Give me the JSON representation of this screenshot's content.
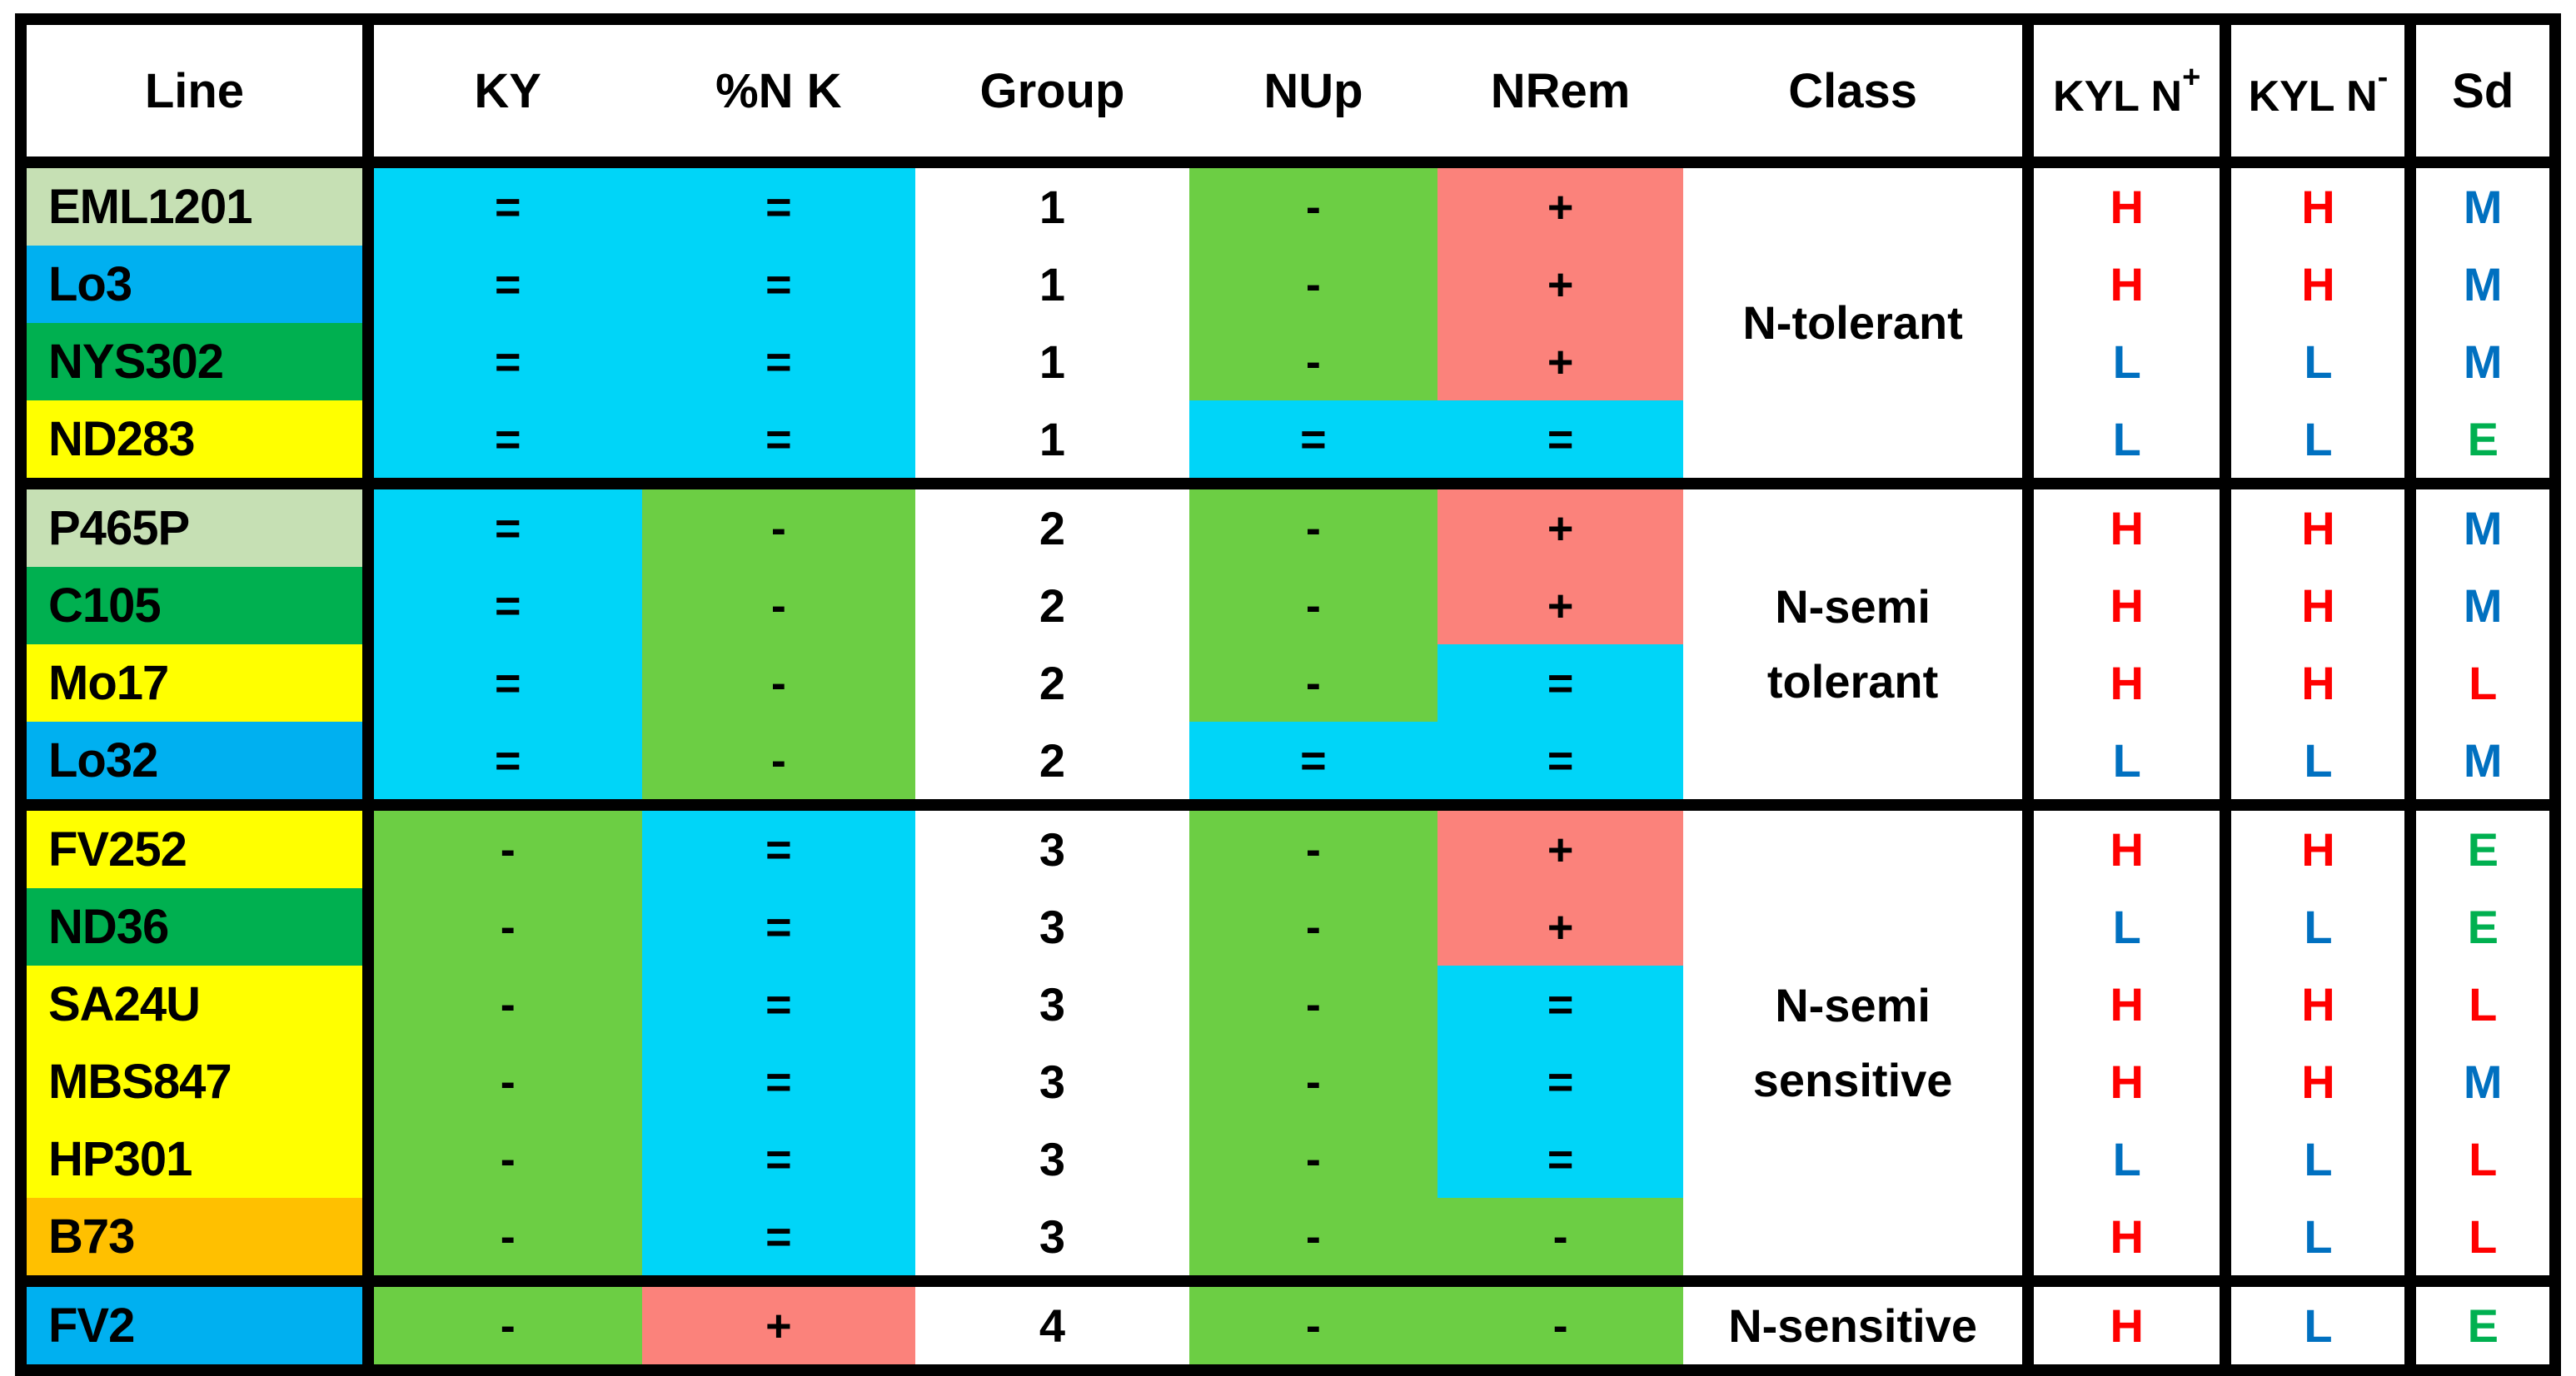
{
  "colors": {
    "lightgreen": "#c6e0b4",
    "blue": "#00b0f0",
    "darkgreen": "#00b050",
    "yellow": "#ffff00",
    "orange": "#ffc000",
    "cyan": "#00d5f8",
    "green": "#6cce44",
    "salmon": "#fb827b",
    "white": "#ffffff",
    "letter_red": "#ff0000",
    "letter_blue": "#0070c0",
    "letter_green": "#00b050"
  },
  "table": {
    "headers": [
      {
        "label": "Line"
      },
      {
        "label": "KY"
      },
      {
        "label": "%N K"
      },
      {
        "label": "Group"
      },
      {
        "label": "NUp"
      },
      {
        "label": "NRem"
      },
      {
        "label": "Class"
      },
      {
        "label": "KYL N",
        "sup": "+"
      },
      {
        "label": "KYL N",
        "sup": "-"
      },
      {
        "label": "Sd"
      }
    ]
  },
  "groups": [
    {
      "class_label": "N-tolerant",
      "rows": [
        {
          "line": "EML1201",
          "line_bg": "lightgreen",
          "ky": {
            "sym": "=",
            "bg": "cyan"
          },
          "pnk": {
            "sym": "=",
            "bg": "cyan"
          },
          "group": "1",
          "nup": {
            "sym": "-",
            "bg": "green"
          },
          "nrem": {
            "sym": "+",
            "bg": "salmon"
          },
          "kyln_plus": {
            "val": "H",
            "color": "letter_red"
          },
          "kyln_minus": {
            "val": "H",
            "color": "letter_red"
          },
          "sd": {
            "val": "M",
            "color": "letter_blue"
          }
        },
        {
          "line": "Lo3",
          "line_bg": "blue",
          "ky": {
            "sym": "=",
            "bg": "cyan"
          },
          "pnk": {
            "sym": "=",
            "bg": "cyan"
          },
          "group": "1",
          "nup": {
            "sym": "-",
            "bg": "green"
          },
          "nrem": {
            "sym": "+",
            "bg": "salmon"
          },
          "kyln_plus": {
            "val": "H",
            "color": "letter_red"
          },
          "kyln_minus": {
            "val": "H",
            "color": "letter_red"
          },
          "sd": {
            "val": "M",
            "color": "letter_blue"
          }
        },
        {
          "line": "NYS302",
          "line_bg": "darkgreen",
          "ky": {
            "sym": "=",
            "bg": "cyan"
          },
          "pnk": {
            "sym": "=",
            "bg": "cyan"
          },
          "group": "1",
          "nup": {
            "sym": "-",
            "bg": "green"
          },
          "nrem": {
            "sym": "+",
            "bg": "salmon"
          },
          "kyln_plus": {
            "val": "L",
            "color": "letter_blue"
          },
          "kyln_minus": {
            "val": "L",
            "color": "letter_blue"
          },
          "sd": {
            "val": "M",
            "color": "letter_blue"
          }
        },
        {
          "line": "ND283",
          "line_bg": "yellow",
          "ky": {
            "sym": "=",
            "bg": "cyan"
          },
          "pnk": {
            "sym": "=",
            "bg": "cyan"
          },
          "group": "1",
          "nup": {
            "sym": "=",
            "bg": "cyan"
          },
          "nrem": {
            "sym": "=",
            "bg": "cyan"
          },
          "kyln_plus": {
            "val": "L",
            "color": "letter_blue"
          },
          "kyln_minus": {
            "val": "L",
            "color": "letter_blue"
          },
          "sd": {
            "val": "E",
            "color": "letter_green"
          }
        }
      ]
    },
    {
      "class_label": "N-semi tolerant",
      "rows": [
        {
          "line": "P465P",
          "line_bg": "lightgreen",
          "ky": {
            "sym": "=",
            "bg": "cyan"
          },
          "pnk": {
            "sym": "-",
            "bg": "green"
          },
          "group": "2",
          "nup": {
            "sym": "-",
            "bg": "green"
          },
          "nrem": {
            "sym": "+",
            "bg": "salmon"
          },
          "kyln_plus": {
            "val": "H",
            "color": "letter_red"
          },
          "kyln_minus": {
            "val": "H",
            "color": "letter_red"
          },
          "sd": {
            "val": "M",
            "color": "letter_blue"
          }
        },
        {
          "line": "C105",
          "line_bg": "darkgreen",
          "ky": {
            "sym": "=",
            "bg": "cyan"
          },
          "pnk": {
            "sym": "-",
            "bg": "green"
          },
          "group": "2",
          "nup": {
            "sym": "-",
            "bg": "green"
          },
          "nrem": {
            "sym": "+",
            "bg": "salmon"
          },
          "kyln_plus": {
            "val": "H",
            "color": "letter_red"
          },
          "kyln_minus": {
            "val": "H",
            "color": "letter_red"
          },
          "sd": {
            "val": "M",
            "color": "letter_blue"
          }
        },
        {
          "line": "Mo17",
          "line_bg": "yellow",
          "ky": {
            "sym": "=",
            "bg": "cyan"
          },
          "pnk": {
            "sym": "-",
            "bg": "green"
          },
          "group": "2",
          "nup": {
            "sym": "-",
            "bg": "green"
          },
          "nrem": {
            "sym": "=",
            "bg": "cyan"
          },
          "kyln_plus": {
            "val": "H",
            "color": "letter_red"
          },
          "kyln_minus": {
            "val": "H",
            "color": "letter_red"
          },
          "sd": {
            "val": "L",
            "color": "letter_red"
          }
        },
        {
          "line": "Lo32",
          "line_bg": "blue",
          "ky": {
            "sym": "=",
            "bg": "cyan"
          },
          "pnk": {
            "sym": "-",
            "bg": "green"
          },
          "group": "2",
          "nup": {
            "sym": "=",
            "bg": "cyan"
          },
          "nrem": {
            "sym": "=",
            "bg": "cyan"
          },
          "kyln_plus": {
            "val": "L",
            "color": "letter_blue"
          },
          "kyln_minus": {
            "val": "L",
            "color": "letter_blue"
          },
          "sd": {
            "val": "M",
            "color": "letter_blue"
          }
        }
      ]
    },
    {
      "class_label": "N-semi sensitive",
      "rows": [
        {
          "line": "FV252",
          "line_bg": "yellow",
          "ky": {
            "sym": "-",
            "bg": "green"
          },
          "pnk": {
            "sym": "=",
            "bg": "cyan"
          },
          "group": "3",
          "nup": {
            "sym": "-",
            "bg": "green"
          },
          "nrem": {
            "sym": "+",
            "bg": "salmon"
          },
          "kyln_plus": {
            "val": "H",
            "color": "letter_red"
          },
          "kyln_minus": {
            "val": "H",
            "color": "letter_red"
          },
          "sd": {
            "val": "E",
            "color": "letter_green"
          }
        },
        {
          "line": "ND36",
          "line_bg": "darkgreen",
          "ky": {
            "sym": "-",
            "bg": "green"
          },
          "pnk": {
            "sym": "=",
            "bg": "cyan"
          },
          "group": "3",
          "nup": {
            "sym": "-",
            "bg": "green"
          },
          "nrem": {
            "sym": "+",
            "bg": "salmon"
          },
          "kyln_plus": {
            "val": "L",
            "color": "letter_blue"
          },
          "kyln_minus": {
            "val": "L",
            "color": "letter_blue"
          },
          "sd": {
            "val": "E",
            "color": "letter_green"
          }
        },
        {
          "line": "SA24U",
          "line_bg": "yellow",
          "ky": {
            "sym": "-",
            "bg": "green"
          },
          "pnk": {
            "sym": "=",
            "bg": "cyan"
          },
          "group": "3",
          "nup": {
            "sym": "-",
            "bg": "green"
          },
          "nrem": {
            "sym": "=",
            "bg": "cyan"
          },
          "kyln_plus": {
            "val": "H",
            "color": "letter_red"
          },
          "kyln_minus": {
            "val": "H",
            "color": "letter_red"
          },
          "sd": {
            "val": "L",
            "color": "letter_red"
          }
        },
        {
          "line": "MBS847",
          "line_bg": "yellow",
          "ky": {
            "sym": "-",
            "bg": "green"
          },
          "pnk": {
            "sym": "=",
            "bg": "cyan"
          },
          "group": "3",
          "nup": {
            "sym": "-",
            "bg": "green"
          },
          "nrem": {
            "sym": "=",
            "bg": "cyan"
          },
          "kyln_plus": {
            "val": "H",
            "color": "letter_red"
          },
          "kyln_minus": {
            "val": "H",
            "color": "letter_red"
          },
          "sd": {
            "val": "M",
            "color": "letter_blue"
          }
        },
        {
          "line": "HP301",
          "line_bg": "yellow",
          "ky": {
            "sym": "-",
            "bg": "green"
          },
          "pnk": {
            "sym": "=",
            "bg": "cyan"
          },
          "group": "3",
          "nup": {
            "sym": "-",
            "bg": "green"
          },
          "nrem": {
            "sym": "=",
            "bg": "cyan"
          },
          "kyln_plus": {
            "val": "L",
            "color": "letter_blue"
          },
          "kyln_minus": {
            "val": "L",
            "color": "letter_blue"
          },
          "sd": {
            "val": "L",
            "color": "letter_red"
          }
        },
        {
          "line": "B73",
          "line_bg": "orange",
          "ky": {
            "sym": "-",
            "bg": "green"
          },
          "pnk": {
            "sym": "=",
            "bg": "cyan"
          },
          "group": "3",
          "nup": {
            "sym": "-",
            "bg": "green"
          },
          "nrem": {
            "sym": "-",
            "bg": "green"
          },
          "kyln_plus": {
            "val": "H",
            "color": "letter_red"
          },
          "kyln_minus": {
            "val": "L",
            "color": "letter_blue"
          },
          "sd": {
            "val": "L",
            "color": "letter_red"
          }
        }
      ]
    },
    {
      "class_label": "N-sensitive",
      "rows": [
        {
          "line": "FV2",
          "line_bg": "blue",
          "ky": {
            "sym": "-",
            "bg": "green"
          },
          "pnk": {
            "sym": "+",
            "bg": "salmon"
          },
          "group": "4",
          "nup": {
            "sym": "-",
            "bg": "green"
          },
          "nrem": {
            "sym": "-",
            "bg": "green"
          },
          "kyln_plus": {
            "val": "H",
            "color": "letter_red"
          },
          "kyln_minus": {
            "val": "L",
            "color": "letter_blue"
          },
          "sd": {
            "val": "E",
            "color": "letter_green"
          }
        }
      ]
    }
  ]
}
